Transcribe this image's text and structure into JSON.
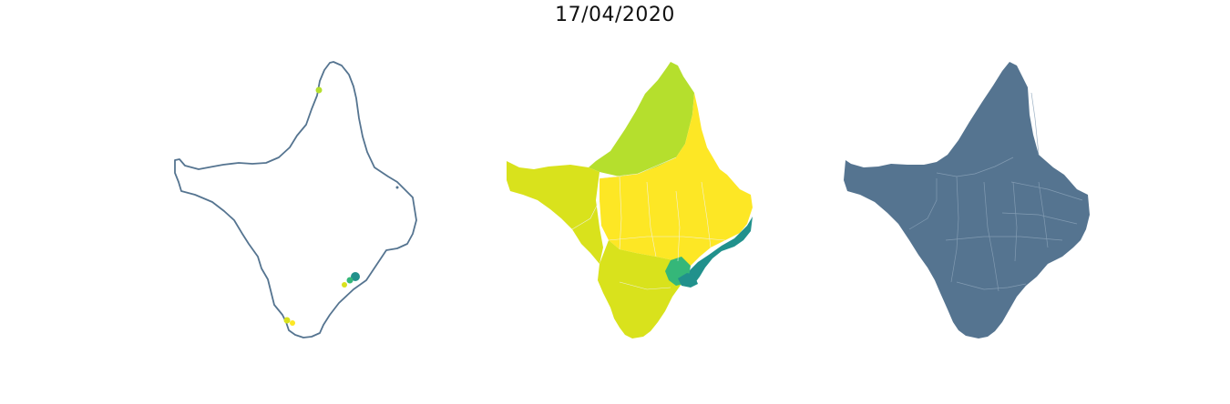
{
  "figure": {
    "title": "17/04/2020"
  },
  "colors": {
    "outline": "#557490",
    "outline_fill": "#ffffff",
    "boundary_fill": "#557490",
    "boundary_lines": "#8aa2b8",
    "viridis_light_green": "#b5df2d",
    "viridis_yellow": "#fde725",
    "viridis_yellow_green": "#d9e21c",
    "viridis_teal": "#21918c",
    "viridis_green": "#35b779"
  },
  "panels": [
    {
      "name": "outline-with-points"
    },
    {
      "name": "choropleth"
    },
    {
      "name": "municipal-boundaries"
    }
  ]
}
